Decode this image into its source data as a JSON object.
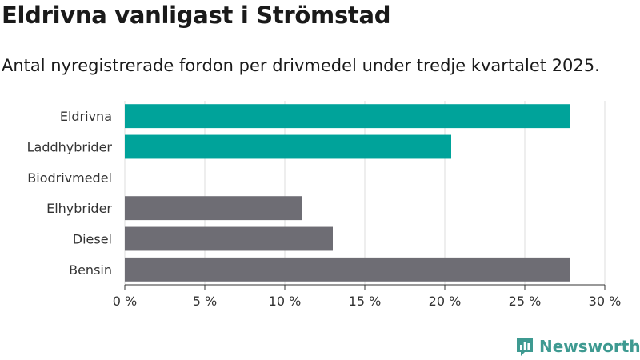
{
  "header": {
    "title": "Eldrivna vanligast i Strömstad",
    "subtitle": "Antal nyregistrerade fordon per drivmedel under tredje kvartalet 2025."
  },
  "brand": {
    "name": "Newsworthy",
    "logo_icon": "bar-chart-logo-icon"
  },
  "colors": {
    "highlight": "#00a39a",
    "other": "#6e6d74",
    "brand": "#3e9a91"
  },
  "chart_data": {
    "type": "bar",
    "orientation": "horizontal",
    "title": "Eldrivna vanligast i Strömstad",
    "subtitle": "Antal nyregistrerade fordon per drivmedel under tredje kvartalet 2025.",
    "xlabel": "",
    "ylabel": "",
    "categories": [
      "Eldrivna",
      "Laddhybrider",
      "Biodrivmedel",
      "Elhybrider",
      "Diesel",
      "Bensin"
    ],
    "values": [
      27.8,
      20.4,
      0,
      11.1,
      13.0,
      27.8
    ],
    "value_unit": "%",
    "bar_groups": [
      "highlight",
      "highlight",
      "highlight",
      "other",
      "other",
      "other"
    ],
    "xlim": [
      0,
      30
    ],
    "xticks": [
      0,
      5,
      10,
      15,
      20,
      25,
      30
    ],
    "xtick_labels": [
      "0 %",
      "5 %",
      "10 %",
      "15 %",
      "20 %",
      "25 %",
      "30 %"
    ],
    "grid": true,
    "legend": "none"
  }
}
